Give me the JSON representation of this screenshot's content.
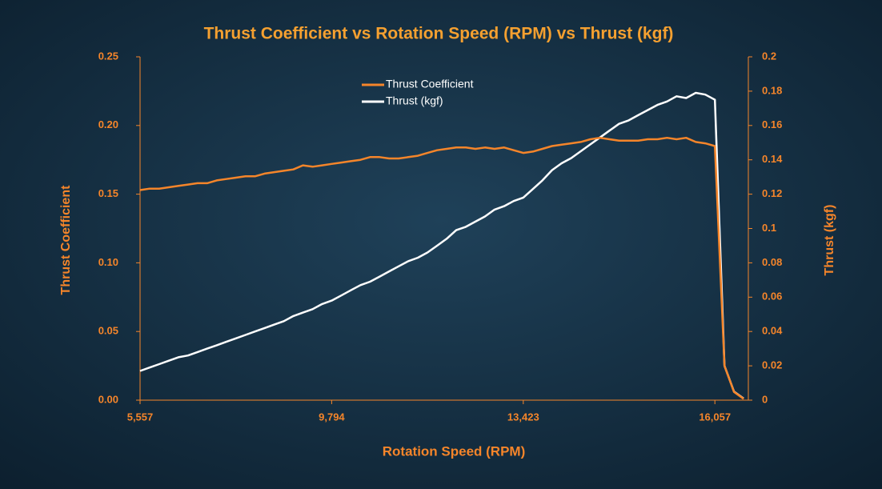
{
  "chart_data": {
    "type": "line",
    "title": "Thrust Coefficient vs Rotation Speed (RPM) vs Thrust (kgf)",
    "xlabel": "Rotation Speed (RPM)",
    "ylabel": "Thrust Coefficient",
    "y2label": "Thrust (kgf)",
    "legend": "top",
    "categories": [
      "5,557",
      null,
      null,
      null,
      null,
      null,
      null,
      null,
      null,
      null,
      null,
      null,
      null,
      null,
      null,
      null,
      null,
      null,
      null,
      null,
      "9,794",
      null,
      null,
      null,
      null,
      null,
      null,
      null,
      null,
      null,
      null,
      null,
      null,
      null,
      null,
      null,
      null,
      null,
      null,
      null,
      "13,423",
      null,
      null,
      null,
      null,
      null,
      null,
      null,
      null,
      null,
      null,
      null,
      null,
      null,
      null,
      null,
      null,
      null,
      null,
      null,
      "16,057",
      null,
      null,
      null
    ],
    "ylim": [
      0,
      0.25
    ],
    "yticks": [
      {
        "value": 0,
        "label": "0.00"
      },
      0.05,
      {
        "value": 0.1,
        "label": "0.10"
      },
      0.15,
      {
        "value": 0.2,
        "label": "0.20"
      },
      0.25
    ],
    "y2lim": [
      0,
      0.2
    ],
    "y2ticks": [
      0,
      0.02,
      0.04,
      0.06,
      0.08,
      0.1,
      0.12,
      0.14,
      0.16,
      0.18,
      0.2
    ],
    "series": [
      {
        "name": "Thrust Coefficient",
        "color": "#f5852a",
        "values": [
          0.153,
          0.154,
          0.154,
          0.155,
          0.156,
          0.157,
          0.158,
          0.158,
          0.16,
          0.161,
          0.162,
          0.163,
          0.163,
          0.165,
          0.166,
          0.167,
          0.168,
          0.171,
          0.17,
          0.171,
          0.172,
          0.173,
          0.174,
          0.175,
          0.177,
          0.177,
          0.176,
          0.176,
          0.177,
          0.178,
          0.18,
          0.182,
          0.183,
          0.184,
          0.184,
          0.183,
          0.184,
          0.183,
          0.184,
          0.182,
          0.18,
          0.181,
          0.183,
          0.185,
          0.186,
          0.187,
          0.188,
          0.19,
          0.191,
          0.19,
          0.189,
          0.189,
          0.189,
          0.19,
          0.19,
          0.191,
          0.19,
          0.191,
          0.188,
          0.187,
          0.185,
          0.025,
          0.006,
          0.001
        ]
      },
      {
        "name": "Thrust (kgf)",
        "color": "#ffffff",
        "axis": "y2",
        "values": [
          0.017,
          0.019,
          0.021,
          0.023,
          0.025,
          0.026,
          0.028,
          0.03,
          0.032,
          0.034,
          0.036,
          0.038,
          0.04,
          0.042,
          0.044,
          0.046,
          0.049,
          0.051,
          0.053,
          0.056,
          0.058,
          0.061,
          0.064,
          0.067,
          0.069,
          0.072,
          0.075,
          0.078,
          0.081,
          0.083,
          0.086,
          0.09,
          0.094,
          0.099,
          0.101,
          0.104,
          0.107,
          0.111,
          0.113,
          0.116,
          0.118,
          0.123,
          0.128,
          0.134,
          0.138,
          0.141,
          0.145,
          0.149,
          0.153,
          0.157,
          0.161,
          0.163,
          0.166,
          0.169,
          0.172,
          0.174,
          0.177,
          0.176,
          0.179,
          0.178,
          0.175,
          0.02,
          0.005,
          0.001
        ]
      }
    ]
  }
}
